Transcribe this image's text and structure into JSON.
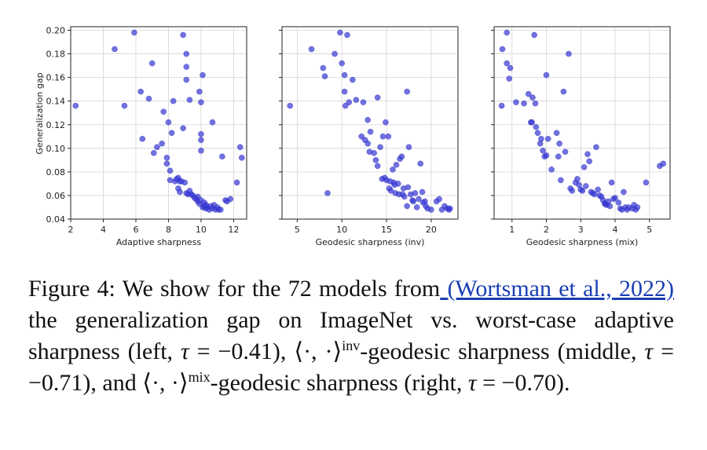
{
  "chart_data": [
    {
      "type": "scatter",
      "xlabel": "Adaptive sharpness",
      "ylabel": "Generalization gap",
      "xlim": [
        2,
        12.8
      ],
      "ylim": [
        0.04,
        0.203
      ],
      "xticks": [
        2,
        4,
        6,
        8,
        10,
        12
      ],
      "yticks": [
        0.04,
        0.06,
        0.08,
        0.1,
        0.12,
        0.14,
        0.16,
        0.18,
        0.2
      ],
      "ytick_labels": [
        "0.04",
        "0.06",
        "0.08",
        "0.10",
        "0.12",
        "0.14",
        "0.16",
        "0.18",
        "0.20"
      ],
      "grid": true,
      "color": "#3a3ad6",
      "points": [
        [
          2.3,
          0.136
        ],
        [
          4.7,
          0.184
        ],
        [
          5.3,
          0.136
        ],
        [
          5.9,
          0.198
        ],
        [
          6.3,
          0.148
        ],
        [
          6.4,
          0.108
        ],
        [
          6.8,
          0.142
        ],
        [
          7.0,
          0.172
        ],
        [
          7.1,
          0.096
        ],
        [
          7.3,
          0.101
        ],
        [
          7.6,
          0.104
        ],
        [
          7.7,
          0.131
        ],
        [
          7.9,
          0.087
        ],
        [
          7.9,
          0.092
        ],
        [
          8.0,
          0.122
        ],
        [
          8.1,
          0.081
        ],
        [
          8.1,
          0.073
        ],
        [
          8.2,
          0.113
        ],
        [
          8.3,
          0.14
        ],
        [
          8.4,
          0.072
        ],
        [
          8.6,
          0.075
        ],
        [
          8.6,
          0.066
        ],
        [
          8.7,
          0.072
        ],
        [
          8.7,
          0.063
        ],
        [
          8.8,
          0.072
        ],
        [
          8.9,
          0.196
        ],
        [
          8.9,
          0.117
        ],
        [
          9.0,
          0.071
        ],
        [
          9.1,
          0.062
        ],
        [
          9.1,
          0.169
        ],
        [
          9.1,
          0.18
        ],
        [
          9.1,
          0.158
        ],
        [
          9.2,
          0.061
        ],
        [
          9.3,
          0.141
        ],
        [
          9.3,
          0.064
        ],
        [
          9.4,
          0.061
        ],
        [
          9.5,
          0.06
        ],
        [
          9.7,
          0.057
        ],
        [
          9.8,
          0.059
        ],
        [
          9.8,
          0.055
        ],
        [
          9.9,
          0.148
        ],
        [
          9.9,
          0.053
        ],
        [
          10.0,
          0.139
        ],
        [
          10.0,
          0.112
        ],
        [
          10.0,
          0.107
        ],
        [
          10.0,
          0.098
        ],
        [
          10.0,
          0.056
        ],
        [
          10.1,
          0.162
        ],
        [
          10.1,
          0.05
        ],
        [
          10.2,
          0.054
        ],
        [
          10.2,
          0.051
        ],
        [
          10.3,
          0.049
        ],
        [
          10.4,
          0.05
        ],
        [
          10.5,
          0.048
        ],
        [
          10.7,
          0.049
        ],
        [
          10.7,
          0.122
        ],
        [
          10.8,
          0.052
        ],
        [
          10.9,
          0.048
        ],
        [
          11.0,
          0.05
        ],
        [
          11.1,
          0.048
        ],
        [
          11.2,
          0.048
        ],
        [
          11.3,
          0.093
        ],
        [
          11.5,
          0.056
        ],
        [
          11.8,
          0.057
        ],
        [
          12.2,
          0.071
        ],
        [
          12.4,
          0.101
        ],
        [
          12.5,
          0.092
        ],
        [
          10.6,
          0.051
        ],
        [
          10.3,
          0.052
        ],
        [
          9.6,
          0.058
        ],
        [
          8.5,
          0.074
        ],
        [
          11.6,
          0.055
        ]
      ]
    },
    {
      "type": "scatter",
      "xlabel": "Geodesic sharpness (inv)",
      "ylabel": "",
      "xlim": [
        3.3,
        23.0
      ],
      "ylim": [
        0.04,
        0.203
      ],
      "xticks": [
        5,
        10,
        15,
        20
      ],
      "yticks": [
        0.04,
        0.06,
        0.08,
        0.1,
        0.12,
        0.14,
        0.16,
        0.18,
        0.2
      ],
      "grid": true,
      "color": "#3a3ad6",
      "points": [
        [
          4.2,
          0.136
        ],
        [
          6.6,
          0.184
        ],
        [
          7.9,
          0.168
        ],
        [
          8.1,
          0.161
        ],
        [
          8.4,
          0.062
        ],
        [
          9.2,
          0.18
        ],
        [
          9.8,
          0.198
        ],
        [
          10.0,
          0.172
        ],
        [
          10.3,
          0.162
        ],
        [
          10.3,
          0.148
        ],
        [
          10.4,
          0.136
        ],
        [
          10.6,
          0.196
        ],
        [
          10.8,
          0.139
        ],
        [
          11.2,
          0.158
        ],
        [
          11.6,
          0.141
        ],
        [
          12.2,
          0.11
        ],
        [
          12.4,
          0.139
        ],
        [
          12.6,
          0.107
        ],
        [
          12.9,
          0.104
        ],
        [
          12.9,
          0.124
        ],
        [
          13.1,
          0.097
        ],
        [
          13.2,
          0.114
        ],
        [
          13.6,
          0.096
        ],
        [
          13.8,
          0.09
        ],
        [
          14.0,
          0.143
        ],
        [
          14.0,
          0.085
        ],
        [
          14.3,
          0.101
        ],
        [
          14.5,
          0.074
        ],
        [
          14.6,
          0.11
        ],
        [
          14.8,
          0.075
        ],
        [
          14.9,
          0.122
        ],
        [
          15.0,
          0.073
        ],
        [
          15.2,
          0.11
        ],
        [
          15.3,
          0.066
        ],
        [
          15.4,
          0.072
        ],
        [
          15.5,
          0.064
        ],
        [
          15.7,
          0.082
        ],
        [
          15.8,
          0.071
        ],
        [
          16.0,
          0.062
        ],
        [
          16.1,
          0.086
        ],
        [
          16.3,
          0.07
        ],
        [
          16.4,
          0.061
        ],
        [
          16.5,
          0.091
        ],
        [
          16.7,
          0.093
        ],
        [
          16.8,
          0.061
        ],
        [
          17.0,
          0.059
        ],
        [
          17.3,
          0.148
        ],
        [
          17.3,
          0.051
        ],
        [
          17.4,
          0.067
        ],
        [
          17.5,
          0.101
        ],
        [
          17.7,
          0.061
        ],
        [
          17.9,
          0.056
        ],
        [
          18.0,
          0.055
        ],
        [
          18.2,
          0.062
        ],
        [
          18.4,
          0.05
        ],
        [
          18.6,
          0.057
        ],
        [
          18.8,
          0.087
        ],
        [
          19.0,
          0.063
        ],
        [
          19.1,
          0.054
        ],
        [
          19.3,
          0.055
        ],
        [
          19.4,
          0.051
        ],
        [
          19.6,
          0.049
        ],
        [
          20.0,
          0.048
        ],
        [
          20.6,
          0.055
        ],
        [
          20.9,
          0.057
        ],
        [
          21.2,
          0.048
        ],
        [
          21.5,
          0.051
        ],
        [
          21.8,
          0.049
        ],
        [
          22.0,
          0.048
        ],
        [
          22.1,
          0.049
        ],
        [
          16.9,
          0.066
        ],
        [
          15.9,
          0.069
        ]
      ]
    },
    {
      "type": "scatter",
      "xlabel": "Geodesic sharpness (mix)",
      "ylabel": "",
      "xlim": [
        0.48,
        5.6
      ],
      "ylim": [
        0.04,
        0.203
      ],
      "xticks": [
        1,
        2,
        3,
        4,
        5
      ],
      "yticks": [
        0.04,
        0.06,
        0.08,
        0.1,
        0.12,
        0.14,
        0.16,
        0.18,
        0.2
      ],
      "grid": true,
      "color": "#3a3ad6",
      "points": [
        [
          0.7,
          0.136
        ],
        [
          0.72,
          0.184
        ],
        [
          0.85,
          0.198
        ],
        [
          0.85,
          0.172
        ],
        [
          0.92,
          0.159
        ],
        [
          0.95,
          0.168
        ],
        [
          1.12,
          0.139
        ],
        [
          1.35,
          0.138
        ],
        [
          1.48,
          0.146
        ],
        [
          1.55,
          0.122
        ],
        [
          1.58,
          0.122
        ],
        [
          1.6,
          0.143
        ],
        [
          1.65,
          0.196
        ],
        [
          1.68,
          0.138
        ],
        [
          1.75,
          0.113
        ],
        [
          1.82,
          0.104
        ],
        [
          1.85,
          0.108
        ],
        [
          1.9,
          0.098
        ],
        [
          1.95,
          0.093
        ],
        [
          2.0,
          0.162
        ],
        [
          2.0,
          0.094
        ],
        [
          2.05,
          0.108
        ],
        [
          2.15,
          0.082
        ],
        [
          2.3,
          0.113
        ],
        [
          2.35,
          0.093
        ],
        [
          2.38,
          0.104
        ],
        [
          2.42,
          0.073
        ],
        [
          2.5,
          0.148
        ],
        [
          2.55,
          0.097
        ],
        [
          2.65,
          0.18
        ],
        [
          2.7,
          0.066
        ],
        [
          2.75,
          0.064
        ],
        [
          2.85,
          0.071
        ],
        [
          2.9,
          0.074
        ],
        [
          3.0,
          0.065
        ],
        [
          3.05,
          0.064
        ],
        [
          3.1,
          0.084
        ],
        [
          3.15,
          0.068
        ],
        [
          3.2,
          0.095
        ],
        [
          3.25,
          0.089
        ],
        [
          3.3,
          0.063
        ],
        [
          3.35,
          0.062
        ],
        [
          3.4,
          0.061
        ],
        [
          3.45,
          0.101
        ],
        [
          3.5,
          0.065
        ],
        [
          3.55,
          0.06
        ],
        [
          3.6,
          0.059
        ],
        [
          3.65,
          0.056
        ],
        [
          3.7,
          0.053
        ],
        [
          3.72,
          0.053
        ],
        [
          3.75,
          0.052
        ],
        [
          3.8,
          0.055
        ],
        [
          3.85,
          0.051
        ],
        [
          3.9,
          0.071
        ],
        [
          4.0,
          0.058
        ],
        [
          4.1,
          0.054
        ],
        [
          4.15,
          0.049
        ],
        [
          4.2,
          0.048
        ],
        [
          4.25,
          0.063
        ],
        [
          4.3,
          0.05
        ],
        [
          4.35,
          0.048
        ],
        [
          4.5,
          0.049
        ],
        [
          4.55,
          0.052
        ],
        [
          4.6,
          0.048
        ],
        [
          4.65,
          0.05
        ],
        [
          4.9,
          0.071
        ],
        [
          5.3,
          0.085
        ],
        [
          5.4,
          0.087
        ],
        [
          4.4,
          0.05
        ],
        [
          3.95,
          0.057
        ],
        [
          2.95,
          0.069
        ],
        [
          1.7,
          0.118
        ]
      ]
    }
  ],
  "caption": {
    "lead": "Figure 4:  We show for the 72 models from",
    "citation": " (Wortsman et al., 2022)",
    "part1": " the generalization gap on ImageNet vs. worst-case adaptive sharpness (left, ",
    "tau_symbol": "τ",
    "tau1_eq": " = −0.41), ",
    "inner_product": "⟨·, ·⟩",
    "sup_inv": "inv",
    "part2": "-geodesic sharpness (middle, ",
    "tau2_eq": " = −0.71), and ",
    "sup_mix": "mix",
    "part3": "-geodesic sharpness (right, ",
    "tau3_eq": " = −0.70)."
  }
}
